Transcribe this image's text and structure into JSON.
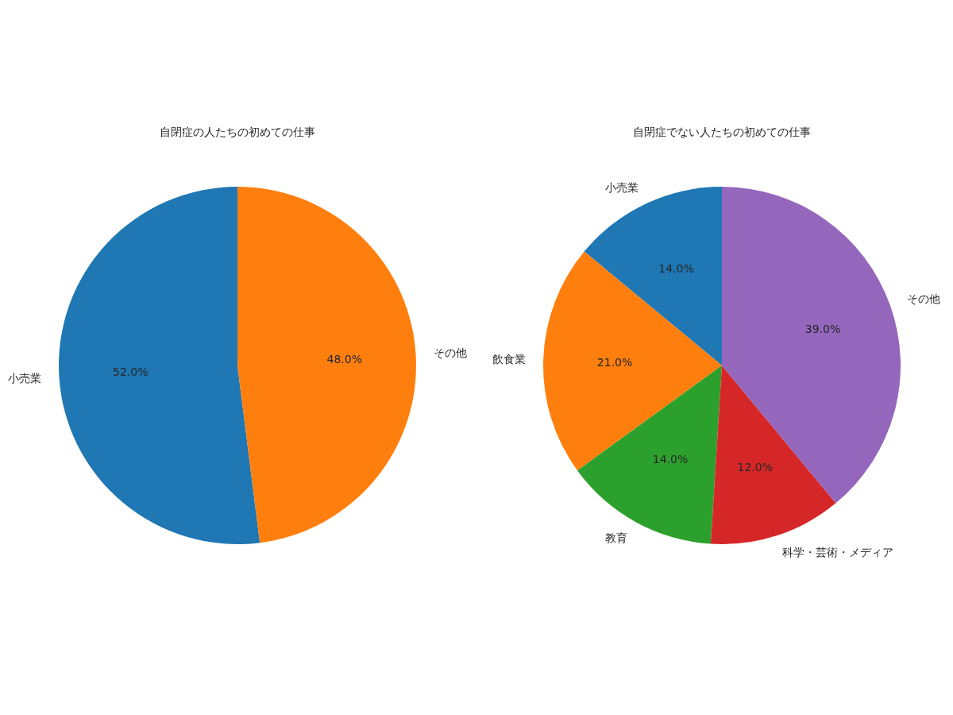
{
  "chart_data": [
    {
      "type": "pie",
      "title": "自閉症の人たちの初めての仕事",
      "categories": [
        "小売業",
        "その他"
      ],
      "values": [
        52,
        48
      ],
      "colors": [
        "#1f77b4",
        "#ff7f0e"
      ],
      "value_labels": [
        "52.0%",
        "48.0%"
      ]
    },
    {
      "type": "pie",
      "title": "自閉症でない人たちの初めての仕事",
      "categories": [
        "小売業",
        "飲食業",
        "教育",
        "科学・芸術・メディア",
        "その他"
      ],
      "values": [
        14,
        21,
        14,
        12,
        39
      ],
      "colors": [
        "#1f77b4",
        "#ff7f0e",
        "#2ca02c",
        "#d62728",
        "#9467bd"
      ],
      "value_labels": [
        "14.0%",
        "21.0%",
        "14.0%",
        "12.0%",
        "39.0%"
      ]
    }
  ]
}
